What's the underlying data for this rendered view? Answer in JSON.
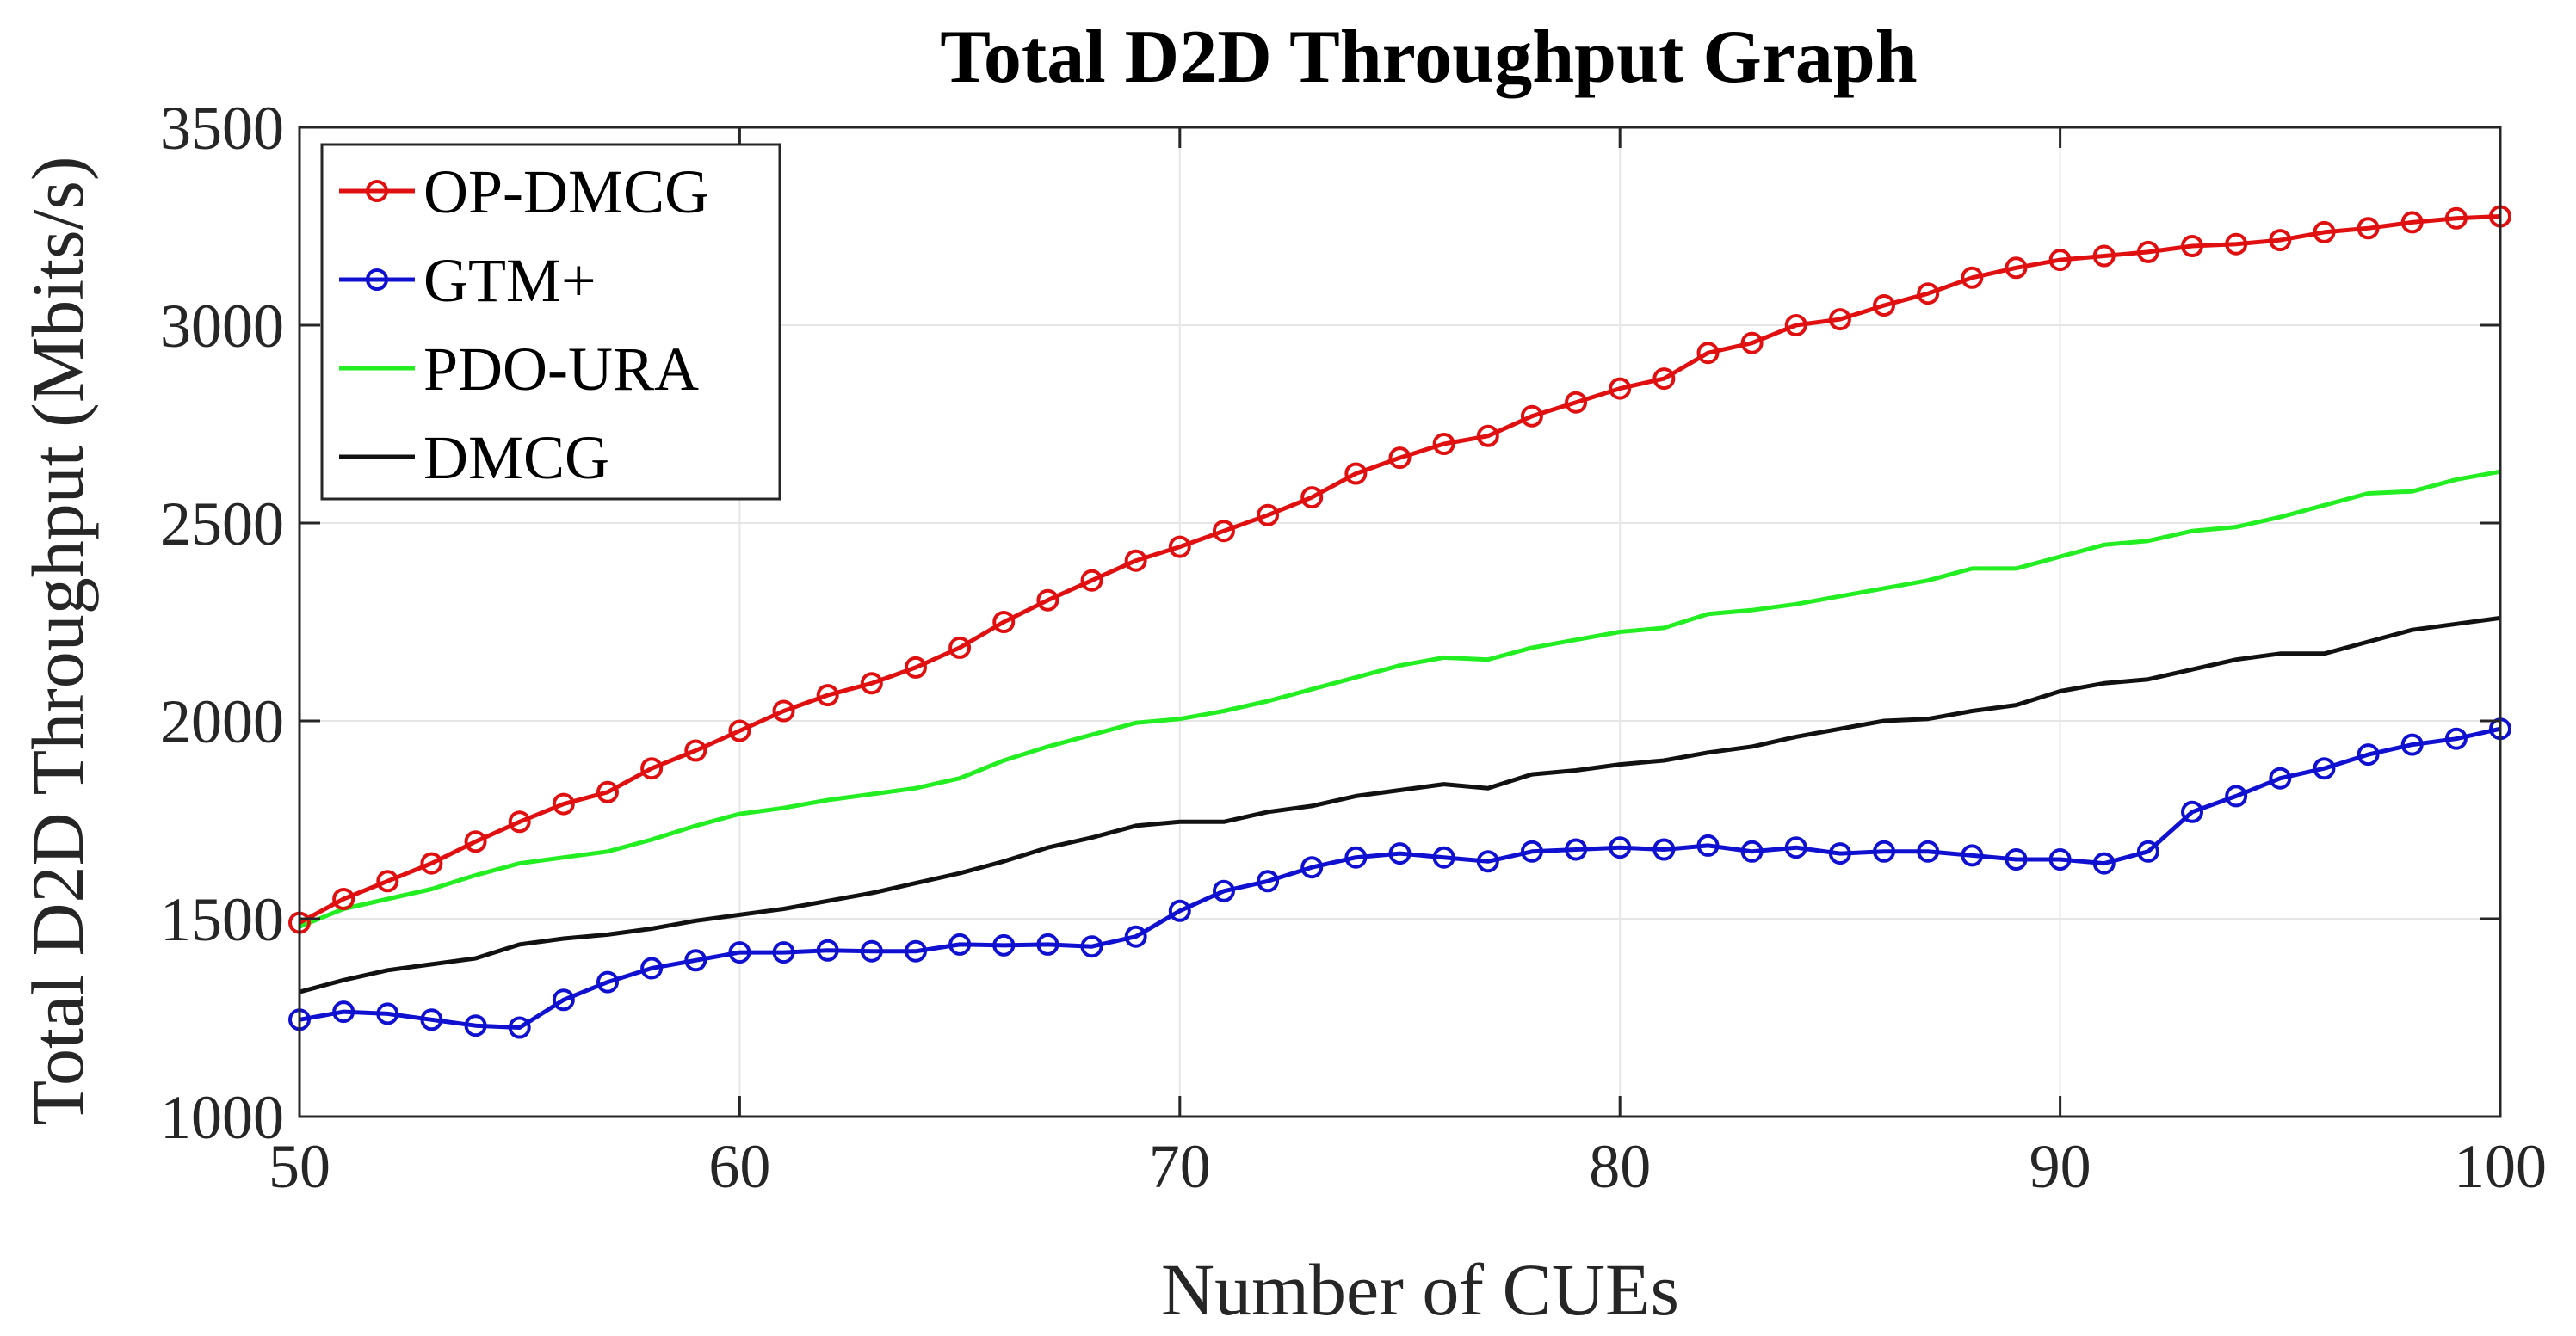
{
  "chart_data": {
    "type": "line",
    "title": "Total D2D Throughput Graph",
    "xlabel": "Number of CUEs",
    "ylabel": "Total D2D Throughput (Mbits/s)",
    "xlim": [
      50,
      100
    ],
    "ylim": [
      1000,
      3500
    ],
    "xticks": [
      50,
      60,
      70,
      80,
      90,
      100
    ],
    "yticks": [
      1000,
      1500,
      2000,
      2500,
      3000,
      3500
    ],
    "grid": true,
    "legend_position": "top-left",
    "x": [
      50,
      51,
      52,
      53,
      54,
      55,
      56,
      57,
      58,
      59,
      60,
      61,
      62,
      63,
      64,
      65,
      66,
      67,
      68,
      69,
      70,
      71,
      72,
      73,
      74,
      75,
      76,
      77,
      78,
      79,
      80,
      81,
      82,
      83,
      84,
      85,
      86,
      87,
      88,
      89,
      90,
      91,
      92,
      93,
      94,
      95,
      96,
      97,
      98,
      99,
      100
    ],
    "series": [
      {
        "name": "OP-DMCG",
        "color": "#e01010",
        "markers": true,
        "values": [
          1490,
          1550,
          1595,
          1640,
          1695,
          1745,
          1790,
          1820,
          1880,
          1925,
          1975,
          2025,
          2065,
          2095,
          2135,
          2185,
          2250,
          2305,
          2355,
          2405,
          2440,
          2480,
          2520,
          2565,
          2625,
          2665,
          2700,
          2720,
          2770,
          2805,
          2840,
          2865,
          2930,
          2955,
          3000,
          3015,
          3050,
          3080,
          3120,
          3145,
          3165,
          3175,
          3185,
          3200,
          3205,
          3215,
          3235,
          3245,
          3260,
          3270,
          3275
        ]
      },
      {
        "name": "GTM+",
        "color": "#1010d0",
        "markers": true,
        "values": [
          1245,
          1265,
          1260,
          1245,
          1230,
          1225,
          1295,
          1340,
          1375,
          1395,
          1415,
          1415,
          1420,
          1418,
          1418,
          1435,
          1433,
          1435,
          1430,
          1455,
          1520,
          1570,
          1595,
          1630,
          1655,
          1665,
          1655,
          1645,
          1670,
          1675,
          1680,
          1675,
          1685,
          1670,
          1680,
          1665,
          1670,
          1670,
          1660,
          1650,
          1650,
          1640,
          1670,
          1770,
          1810,
          1855,
          1880,
          1915,
          1940,
          1955,
          1980
        ]
      },
      {
        "name": "PDO-URA",
        "color": "#22ee22",
        "markers": false,
        "values": [
          1480,
          1525,
          1550,
          1575,
          1610,
          1640,
          1655,
          1670,
          1700,
          1735,
          1765,
          1780,
          1800,
          1815,
          1830,
          1855,
          1900,
          1935,
          1965,
          1995,
          2005,
          2025,
          2050,
          2080,
          2110,
          2140,
          2160,
          2155,
          2185,
          2205,
          2225,
          2235,
          2270,
          2280,
          2295,
          2315,
          2335,
          2355,
          2385,
          2385,
          2415,
          2445,
          2455,
          2480,
          2490,
          2515,
          2545,
          2575,
          2580,
          2610,
          2630
        ]
      },
      {
        "name": "DMCG",
        "color": "#111111",
        "markers": false,
        "values": [
          1315,
          1345,
          1370,
          1385,
          1400,
          1435,
          1450,
          1460,
          1475,
          1495,
          1510,
          1525,
          1545,
          1565,
          1590,
          1615,
          1645,
          1680,
          1705,
          1735,
          1745,
          1745,
          1770,
          1785,
          1810,
          1825,
          1840,
          1830,
          1865,
          1875,
          1890,
          1900,
          1920,
          1935,
          1960,
          1980,
          2000,
          2005,
          2025,
          2040,
          2075,
          2095,
          2105,
          2130,
          2155,
          2170,
          2170,
          2200,
          2230,
          2245,
          2260
        ]
      }
    ]
  }
}
